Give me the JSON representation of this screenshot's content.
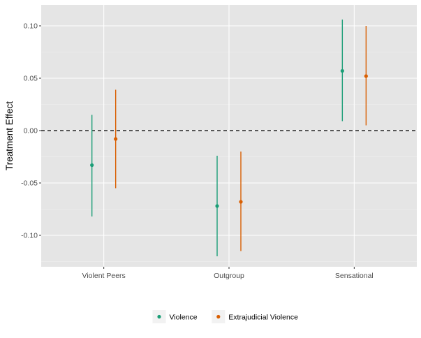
{
  "chart_data": {
    "type": "scatter",
    "ylabel": "Treatment Effect",
    "categories": [
      "Violent Peers",
      "Outgroup",
      "Sensational"
    ],
    "ylim": [
      -0.13,
      0.12
    ],
    "yticks": [
      -0.1,
      -0.05,
      0.0,
      0.05,
      0.1
    ],
    "ytick_labels": [
      "-0.10",
      "-0.05",
      "0.00",
      "0.05",
      "0.10"
    ],
    "reference_line": 0.0,
    "grid": true,
    "legend_position": "bottom",
    "series": [
      {
        "name": "Violence",
        "color": "#1b9e77",
        "estimates": [
          -0.033,
          -0.072,
          0.057
        ],
        "lower": [
          -0.082,
          -0.12,
          0.009
        ],
        "upper": [
          0.015,
          -0.024,
          0.106
        ]
      },
      {
        "name": "Extrajudicial Violence",
        "color": "#d95f02",
        "estimates": [
          -0.008,
          -0.068,
          0.052
        ],
        "lower": [
          -0.055,
          -0.115,
          0.005
        ],
        "upper": [
          0.039,
          -0.02,
          0.1
        ]
      }
    ]
  }
}
